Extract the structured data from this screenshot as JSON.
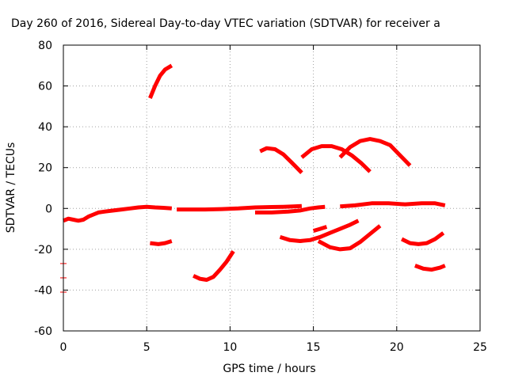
{
  "chart_data": {
    "type": "scatter",
    "title": "Day 260 of 2016, Sidereal Day-to-day VTEC variation (SDTVAR) for receiver a",
    "xlabel": "GPS time / hours",
    "ylabel": "SDTVAR / TECUs",
    "xlim": [
      0,
      25
    ],
    "ylim": [
      -60,
      80
    ],
    "xticks": [
      0,
      5,
      10,
      15,
      20,
      25
    ],
    "yticks": [
      -60,
      -40,
      -20,
      0,
      20,
      40,
      60,
      80
    ],
    "xtick_labels": [
      "0",
      "5",
      "10",
      "15",
      "20",
      "25"
    ],
    "ytick_labels": [
      "-60",
      "-40",
      "-20",
      "0",
      "20",
      "40",
      "60",
      "80"
    ],
    "grid": true,
    "legend": "none",
    "color": "#ff0000",
    "series": [
      {
        "x": [
          0.0,
          0.3,
          0.6,
          0.9,
          1.2,
          1.5,
          1.8,
          2.1,
          2.5,
          3.0,
          3.5,
          4.0,
          4.5,
          5.0,
          5.5,
          6.0,
          6.5
        ],
        "y": [
          -6,
          -5,
          -5.5,
          -6,
          -5.5,
          -4,
          -3,
          -2,
          -1.5,
          -1,
          -0.5,
          0,
          0.5,
          0.8,
          0.5,
          0.3,
          0
        ]
      },
      {
        "x": [
          6.8,
          7.5,
          8.5,
          9.5,
          10.5,
          11.5,
          12.5,
          13.2,
          13.8,
          14.3
        ],
        "y": [
          -0.5,
          -0.5,
          -0.5,
          -0.3,
          0,
          0.5,
          0.7,
          0.8,
          1,
          1.2
        ]
      },
      {
        "x": [
          11.5,
          12.5,
          13.5,
          14.2,
          14.8,
          15.3,
          15.7
        ],
        "y": [
          -2,
          -2,
          -1.5,
          -1,
          0,
          0.5,
          0.8
        ]
      },
      {
        "x": [
          16.6,
          17.5,
          18.5,
          19.5,
          20.5,
          21.5,
          22.3,
          22.9
        ],
        "y": [
          1,
          1.5,
          2.5,
          2.5,
          2,
          2.5,
          2.5,
          1.5
        ]
      },
      {
        "x": [
          5.2,
          5.5,
          5.8,
          6.1,
          6.5
        ],
        "y": [
          54,
          60,
          65,
          68,
          70
        ]
      },
      {
        "x": [
          5.2,
          5.7,
          6.1,
          6.5
        ],
        "y": [
          -17,
          -17.5,
          -17,
          -16
        ]
      },
      {
        "x": [
          7.8,
          8.2,
          8.6,
          9.0,
          9.4,
          9.8,
          10.2
        ],
        "y": [
          -33,
          -34.5,
          -35,
          -33.5,
          -30,
          -26,
          -21
        ]
      },
      {
        "x": [
          11.8,
          12.2,
          12.7,
          13.2,
          13.7,
          14.3
        ],
        "y": [
          28,
          29.5,
          29,
          26.5,
          22.5,
          17.5
        ]
      },
      {
        "x": [
          14.3,
          14.9,
          15.5,
          16.1,
          16.7,
          17.3,
          17.9,
          18.4
        ],
        "y": [
          25,
          29,
          30.5,
          30.5,
          29,
          26,
          22,
          18
        ]
      },
      {
        "x": [
          16.6,
          17.2,
          17.8,
          18.4,
          19.0,
          19.6,
          20.2,
          20.8
        ],
        "y": [
          25,
          30,
          33,
          34,
          33,
          31,
          26,
          21
        ]
      },
      {
        "x": [
          13.0,
          13.6,
          14.2,
          14.8,
          15.4,
          16.0,
          16.6,
          17.2,
          17.7
        ],
        "y": [
          -14,
          -15.5,
          -16,
          -15.5,
          -14,
          -12,
          -10,
          -8,
          -6
        ]
      },
      {
        "x": [
          15.0,
          15.4,
          15.8
        ],
        "y": [
          -11,
          -10,
          -9
        ]
      },
      {
        "x": [
          15.3,
          16.0,
          16.6,
          17.2,
          17.8,
          18.4,
          19.0
        ],
        "y": [
          -16,
          -19,
          -20,
          -19.5,
          -16.5,
          -12.5,
          -8.5
        ]
      },
      {
        "x": [
          20.3,
          20.8,
          21.3,
          21.8,
          22.3,
          22.8
        ],
        "y": [
          -15,
          -17,
          -17.5,
          -17,
          -15,
          -12
        ]
      },
      {
        "x": [
          21.1,
          21.6,
          22.1,
          22.6,
          22.9
        ],
        "y": [
          -28,
          -29.5,
          -30,
          -29,
          -28
        ]
      }
    ],
    "isolated_points": {
      "x": [
        0.0,
        0.0,
        0.0
      ],
      "y": [
        -27,
        -34,
        -41
      ]
    }
  }
}
